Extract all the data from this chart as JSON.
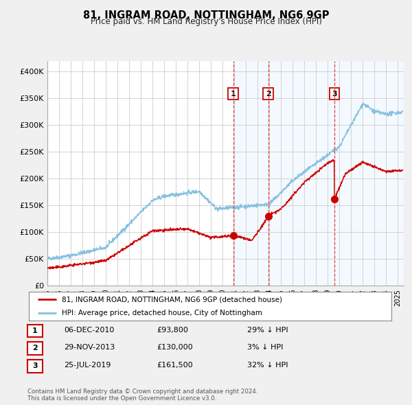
{
  "title": "81, INGRAM ROAD, NOTTINGHAM, NG6 9GP",
  "subtitle": "Price paid vs. HM Land Registry's House Price Index (HPI)",
  "legend_label_red": "81, INGRAM ROAD, NOTTINGHAM, NG6 9GP (detached house)",
  "legend_label_blue": "HPI: Average price, detached house, City of Nottingham",
  "footer_line1": "Contains HM Land Registry data © Crown copyright and database right 2024.",
  "footer_line2": "This data is licensed under the Open Government Licence v3.0.",
  "ylabel_ticks": [
    "£0",
    "£50K",
    "£100K",
    "£150K",
    "£200K",
    "£250K",
    "£300K",
    "£350K",
    "£400K"
  ],
  "ytick_values": [
    0,
    50000,
    100000,
    150000,
    200000,
    250000,
    300000,
    350000,
    400000
  ],
  "ylim": [
    0,
    420000
  ],
  "xlim_start": 1995.0,
  "xlim_end": 2025.5,
  "purchase_dates": [
    2010.92,
    2013.91,
    2019.56
  ],
  "purchase_prices": [
    93800,
    130000,
    161500
  ],
  "purchase_labels": [
    "1",
    "2",
    "3"
  ],
  "vline_color": "#e8413a",
  "purchase_dot_color": "#cc0000",
  "shade_color": "#ddeeff",
  "table_rows": [
    [
      "1",
      "06-DEC-2010",
      "£93,800",
      "29% ↓ HPI"
    ],
    [
      "2",
      "29-NOV-2013",
      "£130,000",
      "3% ↓ HPI"
    ],
    [
      "3",
      "25-JUL-2019",
      "£161,500",
      "32% ↓ HPI"
    ]
  ],
  "hpi_color": "#7fbfdf",
  "red_color": "#cc0000",
  "bg_color": "#f0f0f0",
  "plot_bg_color": "#ffffff",
  "grid_color": "#cccccc",
  "spine_color": "#aaaaaa"
}
